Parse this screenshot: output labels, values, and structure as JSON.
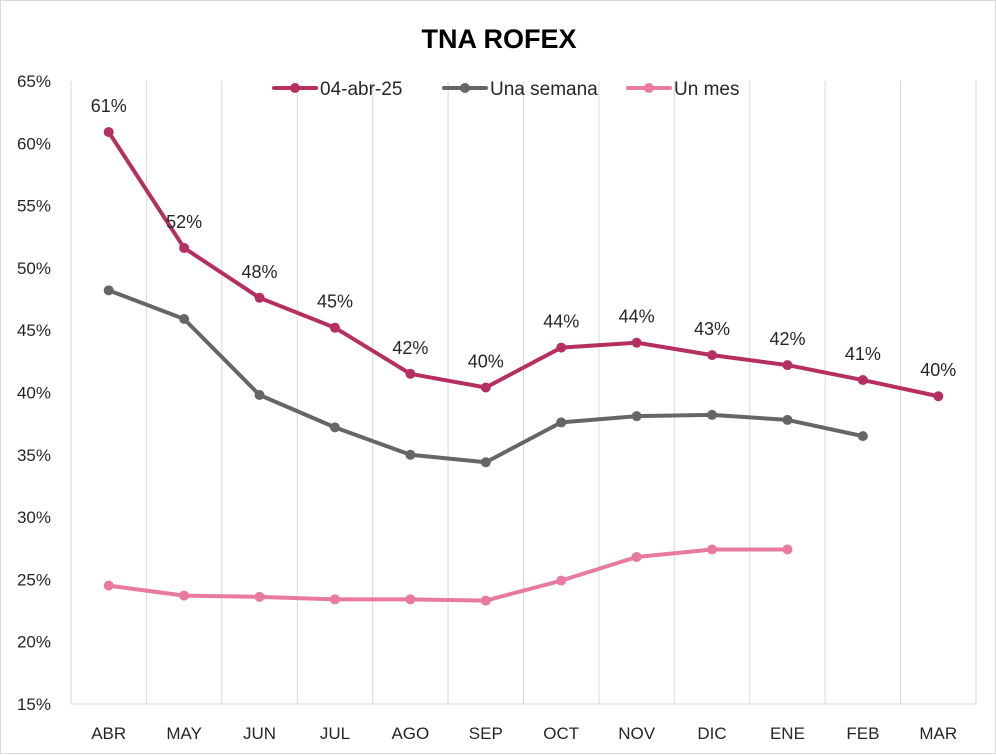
{
  "chart_data": {
    "type": "line",
    "title": "TNA ROFEX",
    "xlabel": "",
    "ylabel": "",
    "ylim": [
      0.15,
      0.65
    ],
    "y_step": 0.05,
    "y_tick_labels": [
      "15%",
      "20%",
      "25%",
      "30%",
      "35%",
      "40%",
      "45%",
      "50%",
      "55%",
      "60%",
      "65%"
    ],
    "categories": [
      "ABR",
      "MAY",
      "JUN",
      "JUL",
      "AGO",
      "SEP",
      "OCT",
      "NOV",
      "DIC",
      "ENE",
      "FEB",
      "MAR"
    ],
    "grid": "vertical",
    "legend_position": "top",
    "series": [
      {
        "name": "04-abr-25",
        "color": "#b5305f",
        "values": [
          0.609,
          0.516,
          0.476,
          0.452,
          0.415,
          0.404,
          0.436,
          0.44,
          0.43,
          0.422,
          0.41,
          0.397
        ],
        "data_labels": [
          "61%",
          "52%",
          "48%",
          "45%",
          "42%",
          "40%",
          "44%",
          "44%",
          "43%",
          "42%",
          "41%",
          "40%"
        ]
      },
      {
        "name": "Una semana",
        "color": "#666669",
        "values": [
          0.482,
          0.459,
          0.398,
          0.372,
          0.35,
          0.344,
          0.376,
          0.381,
          0.382,
          0.378,
          0.365,
          null
        ]
      },
      {
        "name": "Un mes",
        "color": "#e87aa0",
        "values": [
          0.245,
          0.237,
          0.236,
          0.234,
          0.234,
          0.233,
          0.249,
          0.268,
          0.274,
          0.274,
          null,
          null
        ]
      }
    ]
  }
}
